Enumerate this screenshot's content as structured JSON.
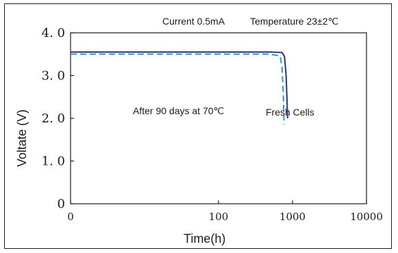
{
  "chart_data": {
    "type": "line",
    "title": "",
    "xlabel": "Time(h)",
    "ylabel": "Voltate (V)",
    "x_scale": "log",
    "xlim": [
      1,
      10000
    ],
    "ylim": [
      0,
      4.0
    ],
    "x_ticks": [
      1,
      100,
      1000,
      10000
    ],
    "x_tick_labels": [
      "0",
      "100",
      "1000",
      "10000"
    ],
    "y_ticks": [
      0,
      1.0,
      2.0,
      3.0,
      4.0
    ],
    "y_tick_labels": [
      "0",
      "1. 0",
      "2. 0",
      "3. 0",
      "4. 0"
    ],
    "grid": false,
    "legend": "none",
    "annotations": {
      "current": "Current 0.5mA",
      "temperature": "Temperature 23±2℃",
      "aged_label": "After 90 days at 70℃",
      "fresh_label": "Fresh Cells"
    },
    "series": [
      {
        "name": "Fresh Cells",
        "color": "#2b2f8f",
        "style": "solid",
        "points": [
          [
            1,
            3.55
          ],
          [
            100,
            3.55
          ],
          [
            500,
            3.55
          ],
          [
            720,
            3.54
          ],
          [
            780,
            3.45
          ],
          [
            820,
            3.0
          ],
          [
            860,
            2.0
          ]
        ]
      },
      {
        "name": "After 90 days at 70℃",
        "color": "#1f9ed8",
        "style": "dashed",
        "points": [
          [
            1,
            3.5
          ],
          [
            100,
            3.5
          ],
          [
            500,
            3.5
          ],
          [
            680,
            3.46
          ],
          [
            720,
            3.2
          ],
          [
            750,
            2.6
          ],
          [
            770,
            1.85
          ]
        ]
      }
    ]
  }
}
